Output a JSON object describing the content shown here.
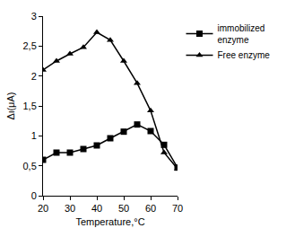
{
  "chart_data": {
    "type": "line",
    "x_label": "Temperature,°C",
    "y_label": "Δι(μA)",
    "x": [
      20,
      25,
      30,
      35,
      40,
      45,
      50,
      55,
      60,
      65,
      70
    ],
    "series": [
      {
        "name": "immobilized enzyme",
        "color": "#000000",
        "marker": "square",
        "values": [
          0.6,
          0.72,
          0.72,
          0.78,
          0.84,
          0.96,
          1.07,
          1.19,
          1.08,
          0.85,
          0.47
        ]
      },
      {
        "name": "Free enzyme",
        "color": "#000000",
        "marker": "triangle",
        "values": [
          2.1,
          2.25,
          2.37,
          2.48,
          2.73,
          2.6,
          2.25,
          1.88,
          1.42,
          0.72,
          0.45
        ]
      }
    ],
    "xlim": [
      20,
      70
    ],
    "xticks": [
      20,
      30,
      40,
      50,
      60,
      70
    ],
    "ylim": [
      0,
      3
    ],
    "yticks": [
      0,
      {
        "value": 0.5,
        "label": "0,5"
      },
      1,
      {
        "value": 1.5,
        "label": "1,5"
      },
      2,
      {
        "value": 2.5,
        "label": "2,5"
      },
      3
    ],
    "grid": false,
    "legend": "right"
  }
}
